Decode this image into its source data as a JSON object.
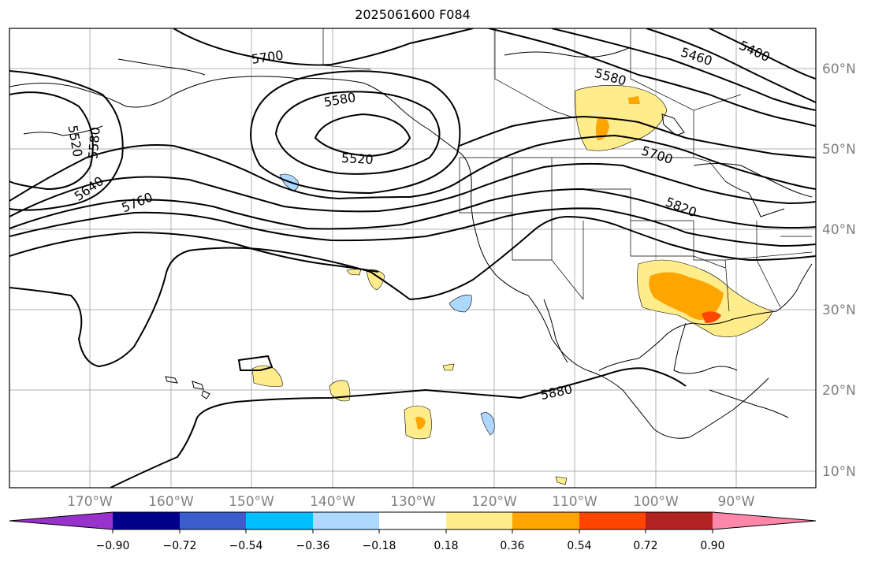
{
  "title": "2025061600 F084",
  "map": {
    "lon_labels": [
      "170°W",
      "160°W",
      "150°W",
      "140°W",
      "130°W",
      "120°W",
      "110°W",
      "100°W",
      "90°W"
    ],
    "lat_labels": [
      "60°N",
      "50°N",
      "40°N",
      "30°N",
      "20°N",
      "10°N"
    ],
    "contour_labels": [
      "5700",
      "5580",
      "5520",
      "5580",
      "5520",
      "5640",
      "5760",
      "5460",
      "5400",
      "5580",
      "5700",
      "5820",
      "5880"
    ]
  },
  "colorbar": {
    "tick_labels": [
      "−0.90",
      "−0.72",
      "−0.54",
      "−0.36",
      "−0.18",
      "0.18",
      "0.36",
      "0.54",
      "0.72",
      "0.90"
    ],
    "colors": [
      "#9932cc",
      "#00008b",
      "#3a5fcd",
      "#00bfff",
      "#add8ff",
      "#ffffff",
      "#ffec8b",
      "#ffa500",
      "#ff4500",
      "#b22222",
      "#ff88aa"
    ]
  }
}
